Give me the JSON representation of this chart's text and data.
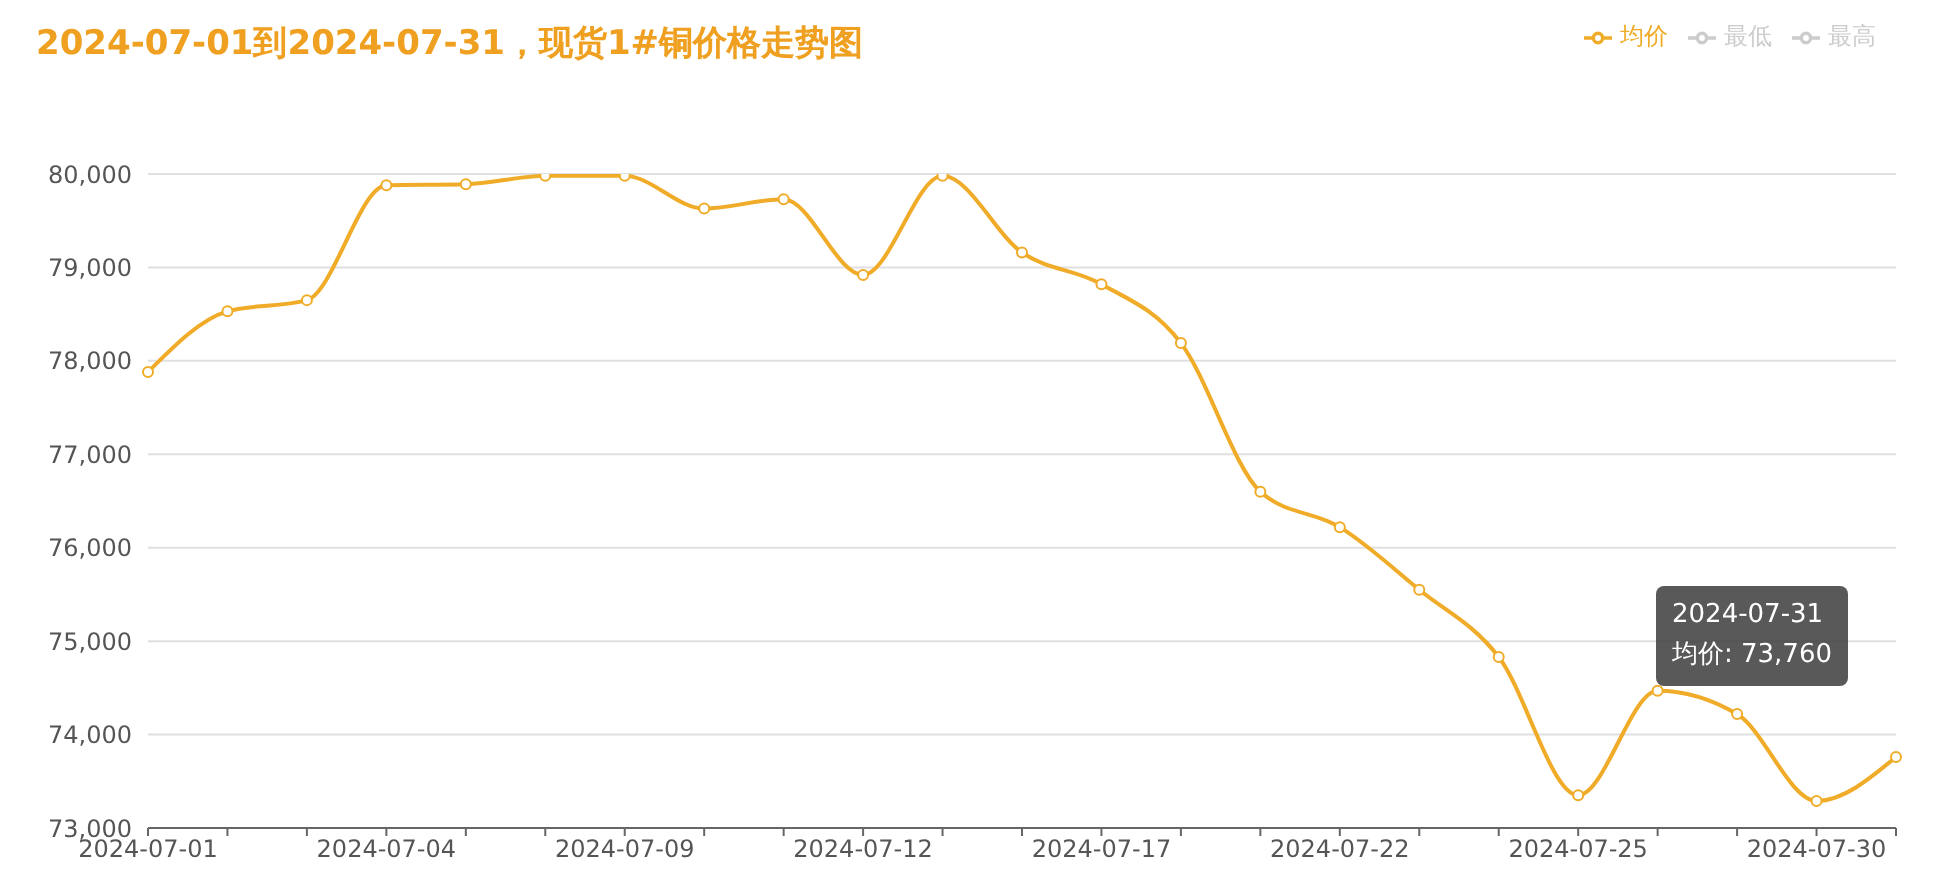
{
  "chart_data": {
    "type": "line",
    "title": "2024-07-01到2024-07-31，现货1#铜价格走势图",
    "categories": [
      "2024-07-01",
      null,
      null,
      "2024-07-04",
      null,
      null,
      "2024-07-09",
      null,
      null,
      "2024-07-12",
      null,
      null,
      "2024-07-17",
      null,
      null,
      "2024-07-22",
      null,
      null,
      "2024-07-25",
      null,
      null,
      "2024-07-30",
      null
    ],
    "series": [
      {
        "name": "最高",
        "color": "#cccccc",
        "values": [
          null,
          null,
          null,
          null,
          null,
          null,
          null,
          null,
          null,
          null,
          null,
          null,
          null,
          null,
          null,
          null,
          null,
          null,
          null,
          null,
          null,
          null,
          null
        ]
      },
      {
        "name": "最低",
        "color": "#cccccc",
        "values": [
          null,
          null,
          null,
          null,
          null,
          null,
          null,
          null,
          null,
          null,
          null,
          null,
          null,
          null,
          null,
          null,
          null,
          null,
          null,
          null,
          null,
          null,
          null
        ]
      },
      {
        "name": "均价",
        "color": "#f0ac28",
        "values": [
          77880,
          78530,
          78650,
          79880,
          79890,
          79980,
          79980,
          79630,
          79730,
          78920,
          79980,
          79160,
          78820,
          78190,
          76600,
          76220,
          75550,
          74830,
          73350,
          74470,
          74220,
          73290,
          73760
        ]
      }
    ],
    "ylim": [
      73000,
      80000
    ],
    "yticks": [
      {
        "value": 73000,
        "label": "73,000"
      },
      {
        "value": 74000,
        "label": "74,000"
      },
      {
        "value": 75000,
        "label": "75,000"
      },
      {
        "value": 76000,
        "label": "76,000"
      },
      {
        "value": 77000,
        "label": "77,000"
      },
      {
        "value": 78000,
        "label": "78,000"
      },
      {
        "value": 79000,
        "label": "79,000"
      },
      {
        "value": 80000,
        "label": "80,000"
      }
    ],
    "grid": "y",
    "legend": "top right",
    "marker": "circle",
    "line_style": "solid",
    "annotations": [
      "2024-07-31",
      "均价: 73,760"
    ]
  }
}
